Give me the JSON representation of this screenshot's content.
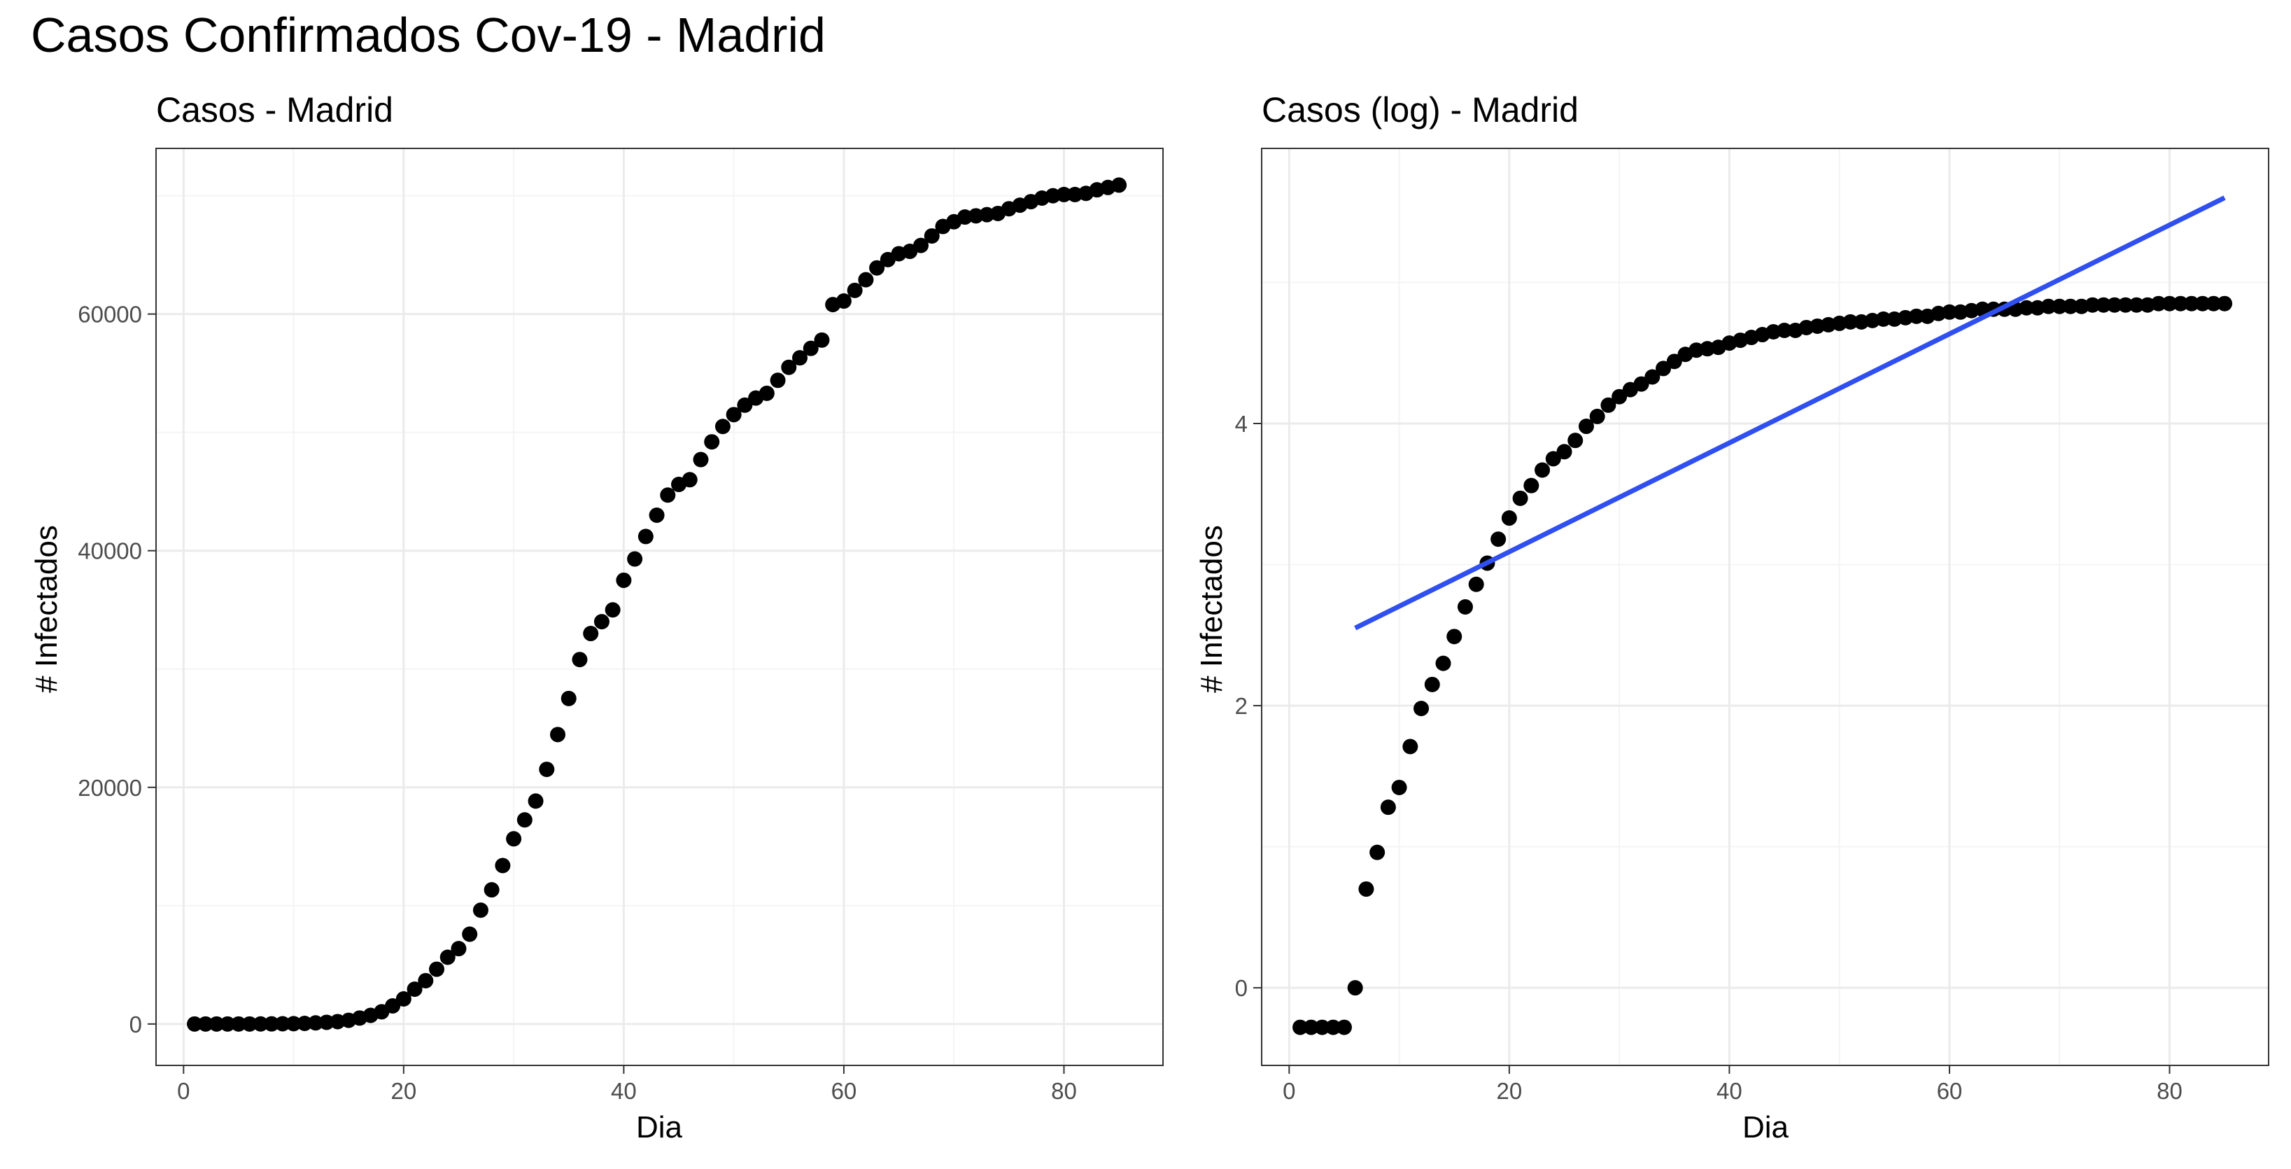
{
  "title": "Casos Confirmados Cov-19 - Madrid",
  "colors": {
    "points": "#000000",
    "fit_line": "#2f4ff0",
    "grid_major": "#ebebeb",
    "grid_minor": "#f4f4f4",
    "panel_border": "#333333"
  },
  "chart_data": [
    {
      "type": "scatter",
      "title": "Casos - Madrid",
      "xlabel": "Dia",
      "ylabel": "# Infectados",
      "xlim": [
        -2.5,
        89
      ],
      "ylim": [
        -3500,
        74000
      ],
      "xticks": [
        0,
        20,
        40,
        60,
        80
      ],
      "yticks": [
        0,
        20000,
        40000,
        60000
      ],
      "grid": true,
      "x": [
        1,
        2,
        3,
        4,
        5,
        6,
        7,
        8,
        9,
        10,
        11,
        12,
        13,
        14,
        15,
        16,
        17,
        18,
        19,
        20,
        21,
        22,
        23,
        24,
        25,
        26,
        27,
        28,
        29,
        30,
        31,
        32,
        33,
        34,
        35,
        36,
        37,
        38,
        39,
        40,
        41,
        42,
        43,
        44,
        45,
        46,
        47,
        48,
        49,
        50,
        51,
        52,
        53,
        54,
        55,
        56,
        57,
        58,
        59,
        60,
        61,
        62,
        63,
        64,
        65,
        66,
        67,
        68,
        69,
        70,
        71,
        72,
        73,
        74,
        75,
        76,
        77,
        78,
        79,
        80,
        81,
        82,
        83,
        84,
        85
      ],
      "y": [
        0,
        0,
        0,
        0,
        0,
        1,
        5,
        9,
        19,
        26,
        51,
        95,
        141,
        200,
        310,
        503,
        730,
        1030,
        1530,
        2120,
        2940,
        3660,
        4630,
        5640,
        6370,
        7590,
        9620,
        11340,
        13390,
        15650,
        17250,
        18840,
        21520,
        24460,
        27510,
        30800,
        33000,
        34000,
        35000,
        37500,
        39300,
        41200,
        43000,
        44700,
        45600,
        46000,
        47700,
        49200,
        50500,
        51500,
        52300,
        52900,
        53300,
        54400,
        55500,
        56300,
        57100,
        57800,
        60800,
        61100,
        62000,
        62900,
        63900,
        64600,
        65100,
        65300,
        65800,
        66600,
        67400,
        67800,
        68200,
        68300,
        68400,
        68500,
        68900,
        69200,
        69500,
        69800,
        70000,
        70100,
        70100,
        70200,
        70500,
        70700,
        70900
      ]
    },
    {
      "type": "scatter",
      "title": "Casos (log) - Madrid",
      "xlabel": "Dia",
      "ylabel": "# Infectados",
      "xlim": [
        -2.5,
        89
      ],
      "ylim": [
        -0.55,
        5.95
      ],
      "xticks": [
        0,
        20,
        40,
        60,
        80
      ],
      "yticks": [
        0,
        2,
        4
      ],
      "grid": true,
      "x": [
        1,
        2,
        3,
        4,
        5,
        6,
        7,
        8,
        9,
        10,
        11,
        12,
        13,
        14,
        15,
        16,
        17,
        18,
        19,
        20,
        21,
        22,
        23,
        24,
        25,
        26,
        27,
        28,
        29,
        30,
        31,
        32,
        33,
        34,
        35,
        36,
        37,
        38,
        39,
        40,
        41,
        42,
        43,
        44,
        45,
        46,
        47,
        48,
        49,
        50,
        51,
        52,
        53,
        54,
        55,
        56,
        57,
        58,
        59,
        60,
        61,
        62,
        63,
        64,
        65,
        66,
        67,
        68,
        69,
        70,
        71,
        72,
        73,
        74,
        75,
        76,
        77,
        78,
        79,
        80,
        81,
        82,
        83,
        84,
        85
      ],
      "y": [
        -0.28,
        -0.28,
        -0.28,
        -0.28,
        -0.28,
        0.0,
        0.7,
        0.96,
        1.28,
        1.42,
        1.71,
        1.98,
        2.15,
        2.3,
        2.49,
        2.7,
        2.86,
        3.01,
        3.18,
        3.33,
        3.47,
        3.56,
        3.67,
        3.75,
        3.8,
        3.88,
        3.98,
        4.05,
        4.13,
        4.19,
        4.24,
        4.28,
        4.33,
        4.39,
        4.44,
        4.49,
        4.52,
        4.53,
        4.54,
        4.57,
        4.59,
        4.61,
        4.63,
        4.65,
        4.66,
        4.66,
        4.68,
        4.69,
        4.7,
        4.71,
        4.72,
        4.72,
        4.73,
        4.74,
        4.74,
        4.75,
        4.76,
        4.76,
        4.78,
        4.79,
        4.79,
        4.8,
        4.81,
        4.81,
        4.81,
        4.81,
        4.82,
        4.82,
        4.83,
        4.83,
        4.83,
        4.83,
        4.84,
        4.84,
        4.84,
        4.84,
        4.84,
        4.84,
        4.85,
        4.85,
        4.85,
        4.85,
        4.85,
        4.85,
        4.85
      ],
      "fit": {
        "type": "line",
        "x": [
          6,
          85
        ],
        "y": [
          2.55,
          5.6
        ]
      }
    }
  ]
}
